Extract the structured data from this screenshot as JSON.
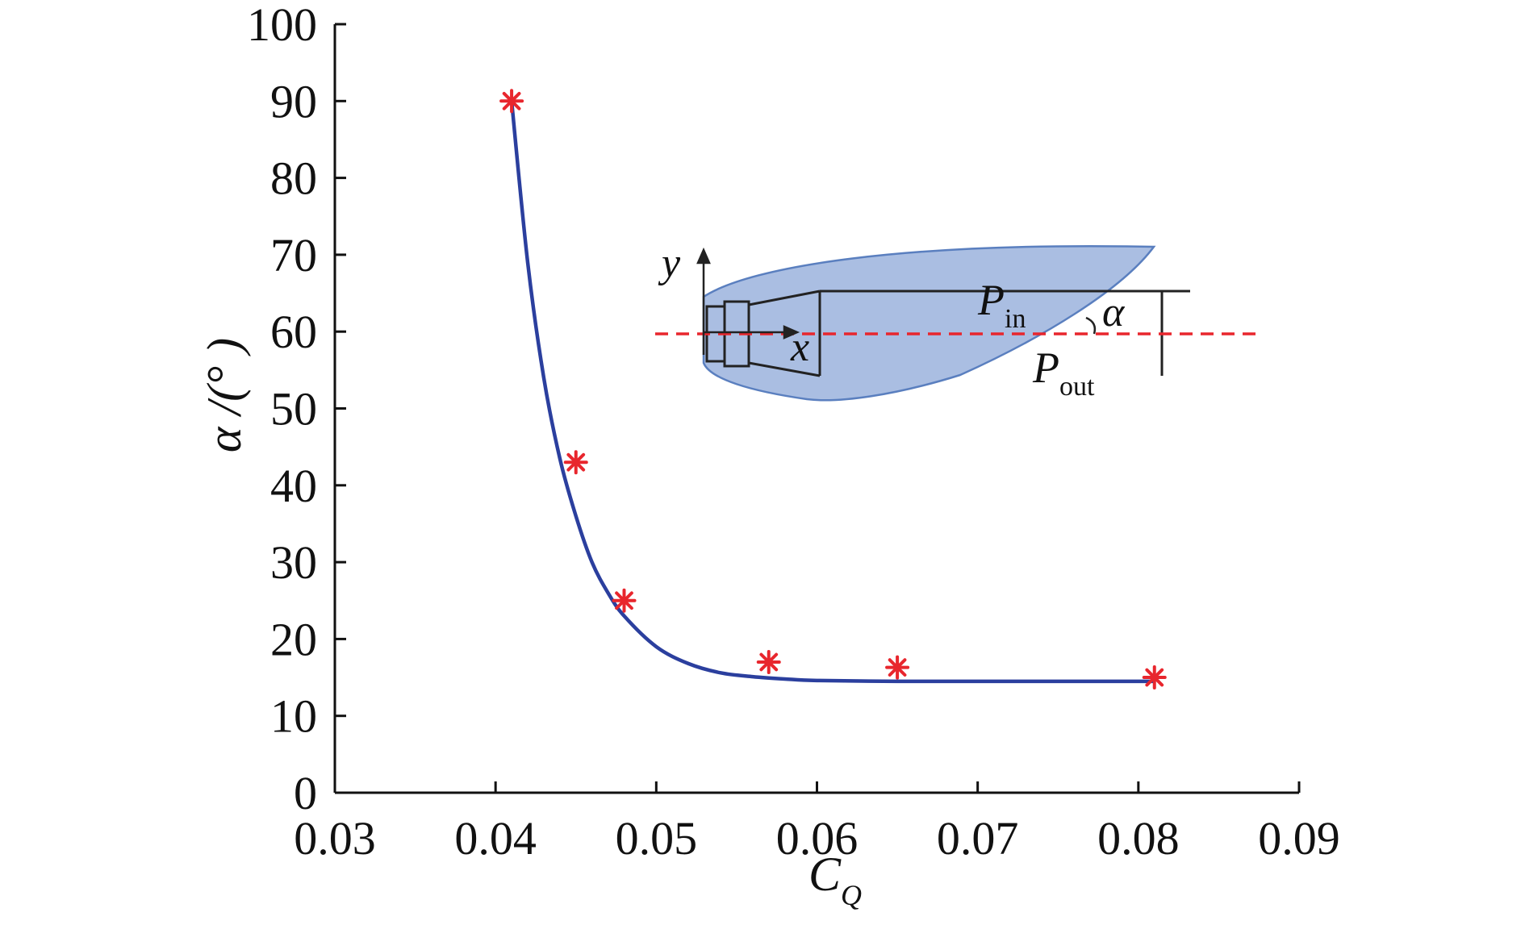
{
  "chart_data": {
    "type": "scatter",
    "title": "",
    "xlabel": {
      "main": "C",
      "sub": "Q"
    },
    "ylabel": "α /(° )",
    "xlim": [
      0.03,
      0.09
    ],
    "ylim": [
      0,
      100
    ],
    "x_ticks": [
      "0.03",
      "0.04",
      "0.05",
      "0.06",
      "0.07",
      "0.08",
      "0.09"
    ],
    "y_ticks": [
      "0",
      "10",
      "20",
      "30",
      "40",
      "50",
      "60",
      "70",
      "80",
      "90",
      "100"
    ],
    "grid": false,
    "series": [
      {
        "kind": "points",
        "marker": "asterisk",
        "color": "#e8262d",
        "x": [
          0.041,
          0.045,
          0.048,
          0.057,
          0.065,
          0.081
        ],
        "y": [
          90,
          43,
          25,
          17,
          16.3,
          15
        ]
      },
      {
        "kind": "fit-line",
        "color": "#2b3f9e",
        "x": [
          0.041,
          0.042,
          0.043,
          0.044,
          0.045,
          0.046,
          0.047,
          0.048,
          0.05,
          0.052,
          0.054,
          0.056,
          0.058,
          0.06,
          0.065,
          0.07,
          0.075,
          0.081
        ],
        "y": [
          90,
          69,
          54,
          43.5,
          36,
          30,
          26,
          23,
          19,
          16.8,
          15.6,
          15.1,
          14.8,
          14.6,
          14.5,
          14.5,
          14.5,
          14.5
        ]
      }
    ],
    "inset": {
      "axis_y": "y",
      "axis_x": "x",
      "p_in": {
        "main": "P",
        "sub": "in"
      },
      "p_out": {
        "main": "P",
        "sub": "out"
      },
      "angle": "α",
      "plume_color": "#9bb3dd",
      "plume_stroke": "#5a7fbf",
      "centerline_color": "#e8262d"
    }
  }
}
